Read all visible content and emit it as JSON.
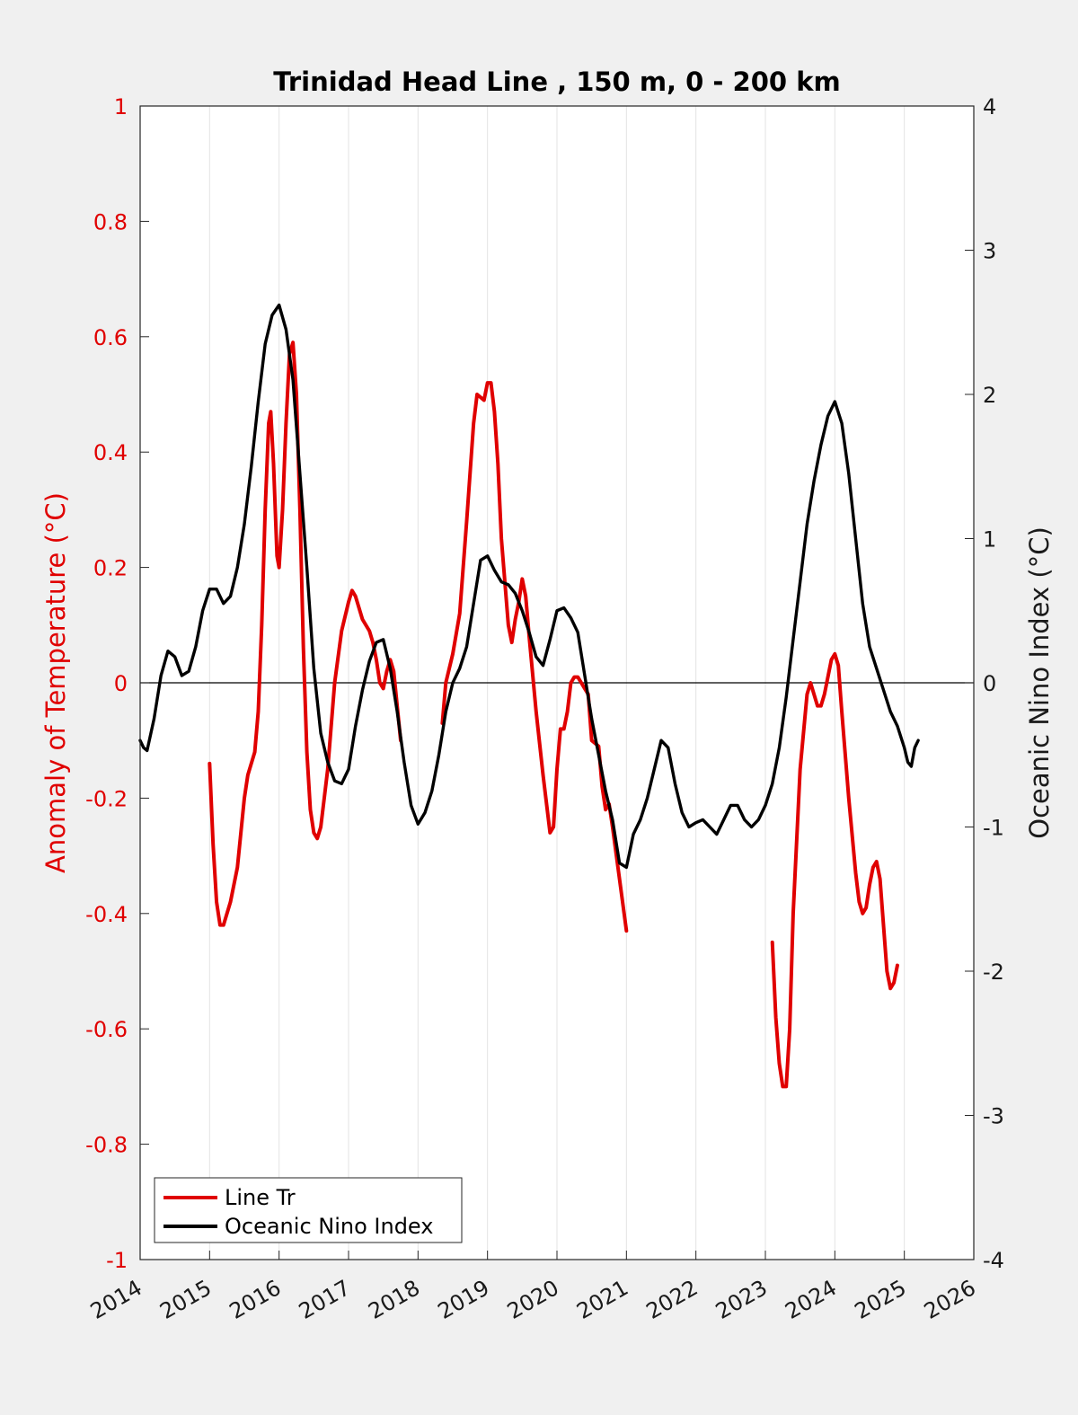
{
  "chart_data": {
    "type": "line",
    "title": "Trinidad Head Line , 150 m, 0 - 200 km",
    "ylabel_left": "Anomaly of Temperature (°C)",
    "ylabel_right": "Oceanic Nino Index (°C)",
    "xlabel": "",
    "xlim": [
      2014,
      2026
    ],
    "ylim_left": [
      -1,
      1
    ],
    "ylim_right": [
      -4,
      4
    ],
    "x_ticks": [
      "2014",
      "2015",
      "2016",
      "2017",
      "2018",
      "2019",
      "2020",
      "2021",
      "2022",
      "2023",
      "2024",
      "2025",
      "2026"
    ],
    "y_left_ticks": [
      "1",
      "0.8",
      "0.6",
      "0.4",
      "0.2",
      "0",
      "-0.2",
      "-0.4",
      "-0.6",
      "-0.8",
      "-1"
    ],
    "y_right_ticks": [
      "4",
      "3",
      "2",
      "1",
      "0",
      "-1",
      "-2",
      "-3",
      "-4"
    ],
    "grid": "vertical",
    "zero_line": true,
    "legend_position": "bottom-left",
    "series": [
      {
        "name": "Line Tr",
        "axis": "left",
        "color": "#e00000",
        "segments": [
          [
            [
              2015.0,
              -0.14
            ],
            [
              2015.05,
              -0.28
            ],
            [
              2015.1,
              -0.38
            ],
            [
              2015.15,
              -0.42
            ],
            [
              2015.2,
              -0.42
            ],
            [
              2015.3,
              -0.38
            ],
            [
              2015.4,
              -0.32
            ],
            [
              2015.5,
              -0.2
            ],
            [
              2015.55,
              -0.16
            ],
            [
              2015.65,
              -0.12
            ],
            [
              2015.7,
              -0.05
            ],
            [
              2015.75,
              0.1
            ],
            [
              2015.8,
              0.3
            ],
            [
              2015.85,
              0.45
            ],
            [
              2015.88,
              0.47
            ],
            [
              2015.92,
              0.38
            ],
            [
              2015.97,
              0.22
            ],
            [
              2016.0,
              0.2
            ],
            [
              2016.05,
              0.3
            ],
            [
              2016.1,
              0.45
            ],
            [
              2016.15,
              0.57
            ],
            [
              2016.2,
              0.59
            ],
            [
              2016.25,
              0.5
            ],
            [
              2016.3,
              0.3
            ],
            [
              2016.35,
              0.06
            ],
            [
              2016.4,
              -0.12
            ],
            [
              2016.45,
              -0.22
            ],
            [
              2016.5,
              -0.26
            ],
            [
              2016.55,
              -0.27
            ],
            [
              2016.6,
              -0.25
            ],
            [
              2016.7,
              -0.15
            ],
            [
              2016.8,
              0.0
            ],
            [
              2016.9,
              0.09
            ],
            [
              2017.0,
              0.14
            ],
            [
              2017.05,
              0.16
            ],
            [
              2017.1,
              0.15
            ],
            [
              2017.2,
              0.11
            ],
            [
              2017.3,
              0.09
            ],
            [
              2017.35,
              0.07
            ],
            [
              2017.4,
              0.04
            ],
            [
              2017.45,
              0.0
            ],
            [
              2017.5,
              -0.01
            ],
            [
              2017.55,
              0.02
            ],
            [
              2017.6,
              0.04
            ],
            [
              2017.65,
              0.02
            ],
            [
              2017.7,
              -0.04
            ],
            [
              2017.75,
              -0.1
            ]
          ],
          [
            [
              2018.35,
              -0.07
            ],
            [
              2018.4,
              0.0
            ],
            [
              2018.5,
              0.05
            ],
            [
              2018.6,
              0.12
            ],
            [
              2018.7,
              0.28
            ],
            [
              2018.8,
              0.45
            ],
            [
              2018.85,
              0.5
            ],
            [
              2018.95,
              0.49
            ],
            [
              2019.0,
              0.52
            ],
            [
              2019.05,
              0.52
            ],
            [
              2019.1,
              0.47
            ],
            [
              2019.15,
              0.38
            ],
            [
              2019.2,
              0.25
            ],
            [
              2019.3,
              0.1
            ],
            [
              2019.35,
              0.07
            ],
            [
              2019.4,
              0.11
            ],
            [
              2019.45,
              0.14
            ],
            [
              2019.5,
              0.18
            ],
            [
              2019.55,
              0.15
            ],
            [
              2019.6,
              0.08
            ],
            [
              2019.7,
              -0.05
            ],
            [
              2019.8,
              -0.16
            ],
            [
              2019.9,
              -0.26
            ],
            [
              2019.95,
              -0.25
            ],
            [
              2020.0,
              -0.15
            ],
            [
              2020.05,
              -0.08
            ],
            [
              2020.1,
              -0.08
            ],
            [
              2020.15,
              -0.05
            ],
            [
              2020.2,
              0.0
            ],
            [
              2020.25,
              0.01
            ],
            [
              2020.3,
              0.01
            ],
            [
              2020.35,
              0.0
            ],
            [
              2020.4,
              -0.01
            ],
            [
              2020.45,
              -0.02
            ],
            [
              2020.5,
              -0.1
            ],
            [
              2020.6,
              -0.11
            ],
            [
              2020.65,
              -0.18
            ],
            [
              2020.7,
              -0.22
            ],
            [
              2020.75,
              -0.21
            ],
            [
              2020.8,
              -0.25
            ],
            [
              2020.9,
              -0.34
            ],
            [
              2021.0,
              -0.43
            ]
          ],
          [
            [
              2023.1,
              -0.45
            ],
            [
              2023.15,
              -0.58
            ],
            [
              2023.2,
              -0.66
            ],
            [
              2023.25,
              -0.7
            ],
            [
              2023.3,
              -0.7
            ],
            [
              2023.35,
              -0.6
            ],
            [
              2023.4,
              -0.4
            ],
            [
              2023.5,
              -0.15
            ],
            [
              2023.6,
              -0.02
            ],
            [
              2023.65,
              0.0
            ],
            [
              2023.7,
              -0.02
            ],
            [
              2023.75,
              -0.04
            ],
            [
              2023.8,
              -0.04
            ],
            [
              2023.85,
              -0.02
            ],
            [
              2023.9,
              0.01
            ],
            [
              2023.95,
              0.04
            ],
            [
              2024.0,
              0.05
            ],
            [
              2024.05,
              0.03
            ],
            [
              2024.1,
              -0.05
            ],
            [
              2024.2,
              -0.2
            ],
            [
              2024.3,
              -0.33
            ],
            [
              2024.35,
              -0.38
            ],
            [
              2024.4,
              -0.4
            ],
            [
              2024.45,
              -0.39
            ],
            [
              2024.5,
              -0.35
            ],
            [
              2024.55,
              -0.32
            ],
            [
              2024.6,
              -0.31
            ],
            [
              2024.65,
              -0.34
            ],
            [
              2024.7,
              -0.42
            ],
            [
              2024.75,
              -0.5
            ],
            [
              2024.8,
              -0.53
            ],
            [
              2024.85,
              -0.52
            ],
            [
              2024.9,
              -0.49
            ]
          ]
        ]
      },
      {
        "name": "Oceanic Nino Index",
        "axis": "right",
        "color": "#000000",
        "segments": [
          [
            [
              2014.0,
              -0.4
            ],
            [
              2014.05,
              -0.45
            ],
            [
              2014.1,
              -0.47
            ],
            [
              2014.2,
              -0.25
            ],
            [
              2014.3,
              0.05
            ],
            [
              2014.4,
              0.22
            ],
            [
              2014.5,
              0.18
            ],
            [
              2014.6,
              0.05
            ],
            [
              2014.7,
              0.08
            ],
            [
              2014.8,
              0.25
            ],
            [
              2014.9,
              0.5
            ],
            [
              2015.0,
              0.65
            ],
            [
              2015.1,
              0.65
            ],
            [
              2015.2,
              0.55
            ],
            [
              2015.3,
              0.6
            ],
            [
              2015.4,
              0.8
            ],
            [
              2015.5,
              1.1
            ],
            [
              2015.6,
              1.5
            ],
            [
              2015.7,
              1.95
            ],
            [
              2015.8,
              2.35
            ],
            [
              2015.9,
              2.55
            ],
            [
              2016.0,
              2.62
            ],
            [
              2016.1,
              2.45
            ],
            [
              2016.2,
              2.1
            ],
            [
              2016.3,
              1.45
            ],
            [
              2016.4,
              0.8
            ],
            [
              2016.5,
              0.1
            ],
            [
              2016.6,
              -0.35
            ],
            [
              2016.7,
              -0.55
            ],
            [
              2016.8,
              -0.68
            ],
            [
              2016.9,
              -0.7
            ],
            [
              2017.0,
              -0.6
            ],
            [
              2017.1,
              -0.3
            ],
            [
              2017.2,
              -0.05
            ],
            [
              2017.3,
              0.15
            ],
            [
              2017.4,
              0.28
            ],
            [
              2017.5,
              0.3
            ],
            [
              2017.6,
              0.1
            ],
            [
              2017.7,
              -0.2
            ],
            [
              2017.8,
              -0.55
            ],
            [
              2017.9,
              -0.85
            ],
            [
              2018.0,
              -0.98
            ],
            [
              2018.1,
              -0.9
            ],
            [
              2018.2,
              -0.75
            ],
            [
              2018.3,
              -0.5
            ],
            [
              2018.4,
              -0.2
            ],
            [
              2018.5,
              0.0
            ],
            [
              2018.6,
              0.1
            ],
            [
              2018.7,
              0.25
            ],
            [
              2018.8,
              0.55
            ],
            [
              2018.9,
              0.85
            ],
            [
              2019.0,
              0.88
            ],
            [
              2019.1,
              0.78
            ],
            [
              2019.2,
              0.7
            ],
            [
              2019.3,
              0.68
            ],
            [
              2019.4,
              0.62
            ],
            [
              2019.5,
              0.5
            ],
            [
              2019.6,
              0.35
            ],
            [
              2019.7,
              0.18
            ],
            [
              2019.8,
              0.12
            ],
            [
              2019.9,
              0.3
            ],
            [
              2020.0,
              0.5
            ],
            [
              2020.1,
              0.52
            ],
            [
              2020.2,
              0.45
            ],
            [
              2020.3,
              0.35
            ],
            [
              2020.4,
              0.05
            ],
            [
              2020.5,
              -0.25
            ],
            [
              2020.6,
              -0.5
            ],
            [
              2020.7,
              -0.75
            ],
            [
              2020.8,
              -0.95
            ],
            [
              2020.9,
              -1.25
            ],
            [
              2021.0,
              -1.28
            ],
            [
              2021.1,
              -1.05
            ],
            [
              2021.2,
              -0.95
            ],
            [
              2021.3,
              -0.8
            ],
            [
              2021.4,
              -0.6
            ],
            [
              2021.5,
              -0.4
            ],
            [
              2021.6,
              -0.45
            ],
            [
              2021.7,
              -0.7
            ],
            [
              2021.8,
              -0.9
            ],
            [
              2021.9,
              -1.0
            ],
            [
              2022.0,
              -0.97
            ],
            [
              2022.1,
              -0.95
            ],
            [
              2022.2,
              -1.0
            ],
            [
              2022.3,
              -1.05
            ],
            [
              2022.4,
              -0.95
            ],
            [
              2022.5,
              -0.85
            ],
            [
              2022.6,
              -0.85
            ],
            [
              2022.7,
              -0.95
            ],
            [
              2022.8,
              -1.0
            ],
            [
              2022.9,
              -0.95
            ],
            [
              2023.0,
              -0.85
            ],
            [
              2023.1,
              -0.7
            ],
            [
              2023.2,
              -0.45
            ],
            [
              2023.3,
              -0.1
            ],
            [
              2023.4,
              0.3
            ],
            [
              2023.5,
              0.7
            ],
            [
              2023.6,
              1.1
            ],
            [
              2023.7,
              1.4
            ],
            [
              2023.8,
              1.65
            ],
            [
              2023.9,
              1.85
            ],
            [
              2024.0,
              1.95
            ],
            [
              2024.1,
              1.8
            ],
            [
              2024.2,
              1.45
            ],
            [
              2024.3,
              1.0
            ],
            [
              2024.4,
              0.55
            ],
            [
              2024.5,
              0.25
            ],
            [
              2024.6,
              0.1
            ],
            [
              2024.7,
              -0.05
            ],
            [
              2024.8,
              -0.2
            ],
            [
              2024.9,
              -0.3
            ],
            [
              2025.0,
              -0.45
            ],
            [
              2025.05,
              -0.55
            ],
            [
              2025.1,
              -0.58
            ],
            [
              2025.15,
              -0.45
            ],
            [
              2025.2,
              -0.4
            ]
          ]
        ]
      }
    ]
  }
}
